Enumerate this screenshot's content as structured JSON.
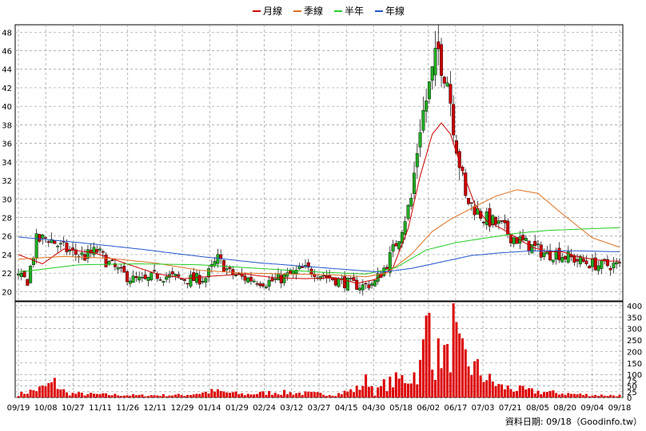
{
  "chart_data": {
    "type": "candlestick",
    "legend": [
      {
        "name": "月線",
        "color": "#cc0000"
      },
      {
        "name": "季線",
        "color": "#e07020"
      },
      {
        "name": "半年",
        "color": "#22cc22"
      },
      {
        "name": "年線",
        "color": "#2255cc"
      }
    ],
    "price_axis": {
      "ylim": [
        19,
        48.8
      ],
      "ticks": [
        20,
        22,
        24,
        26,
        28,
        30,
        32,
        34,
        36,
        38,
        40,
        42,
        44,
        46,
        48
      ]
    },
    "volume_axis": {
      "ylim": [
        0,
        410
      ],
      "ticks": [
        0,
        25,
        50,
        75,
        100,
        150,
        200,
        250,
        300,
        350,
        400
      ]
    },
    "x_labels": [
      "09/19",
      "10/08",
      "10/27",
      "11/11",
      "11/26",
      "12/11",
      "12/29",
      "01/14",
      "01/29",
      "02/24",
      "03/12",
      "03/27",
      "04/15",
      "04/30",
      "05/18",
      "06/02",
      "06/17",
      "07/03",
      "07/21",
      "08/05",
      "08/20",
      "09/04",
      "09/18"
    ],
    "source_text": "資料日期: 09/18（Goodinfo.tw）",
    "candle_up_color": "#22aa22",
    "candle_down_color": "#cc0000",
    "bar_color": "#dd0000",
    "grid": true,
    "anchors": {
      "close": [
        [
          0,
          21.5
        ],
        [
          3,
          21.2
        ],
        [
          6,
          25.5
        ],
        [
          10,
          25.8
        ],
        [
          14,
          24.8
        ],
        [
          18,
          24.2
        ],
        [
          22,
          23.8
        ],
        [
          26,
          24.4
        ],
        [
          30,
          23.0
        ],
        [
          34,
          22.0
        ],
        [
          38,
          21.3
        ],
        [
          42,
          21.1
        ],
        [
          46,
          21.8
        ],
        [
          50,
          21.6
        ],
        [
          54,
          21.4
        ],
        [
          58,
          21.3
        ],
        [
          62,
          21.5
        ],
        [
          66,
          23.5
        ],
        [
          70,
          22.0
        ],
        [
          74,
          21.5
        ],
        [
          78,
          21.3
        ],
        [
          82,
          21.0
        ],
        [
          86,
          21.3
        ],
        [
          90,
          21.8
        ],
        [
          94,
          22.4
        ],
        [
          98,
          22.2
        ],
        [
          102,
          21.6
        ],
        [
          106,
          21.2
        ],
        [
          110,
          20.8
        ],
        [
          114,
          20.6
        ],
        [
          118,
          21.0
        ],
        [
          122,
          23.0
        ],
        [
          126,
          26.0
        ],
        [
          130,
          30.0
        ],
        [
          133,
          38.0
        ],
        [
          136,
          42.0
        ],
        [
          139,
          46.0
        ],
        [
          142,
          43.0
        ],
        [
          145,
          36.0
        ],
        [
          148,
          30.0
        ],
        [
          151,
          29.0
        ],
        [
          154,
          28.0
        ],
        [
          157,
          27.5
        ],
        [
          160,
          27.0
        ],
        [
          163,
          26.0
        ],
        [
          166,
          25.5
        ],
        [
          169,
          25.0
        ],
        [
          172,
          24.5
        ],
        [
          175,
          24.0
        ],
        [
          178,
          24.2
        ],
        [
          181,
          23.8
        ],
        [
          184,
          23.5
        ],
        [
          187,
          23.2
        ],
        [
          190,
          23.0
        ],
        [
          193,
          22.8
        ],
        [
          196,
          22.9
        ],
        [
          199,
          22.8
        ]
      ],
      "ma20": [
        [
          0,
          24.0
        ],
        [
          8,
          23.0
        ],
        [
          15,
          24.6
        ],
        [
          25,
          24.2
        ],
        [
          35,
          23.1
        ],
        [
          45,
          22.0
        ],
        [
          55,
          21.4
        ],
        [
          65,
          21.7
        ],
        [
          75,
          21.9
        ],
        [
          85,
          21.5
        ],
        [
          95,
          21.4
        ],
        [
          105,
          21.5
        ],
        [
          112,
          20.9
        ],
        [
          118,
          21.3
        ],
        [
          124,
          22.6
        ],
        [
          129,
          26.8
        ],
        [
          133,
          32.5
        ],
        [
          137,
          37.0
        ],
        [
          140,
          38.2
        ],
        [
          143,
          37.0
        ],
        [
          147,
          33.0
        ],
        [
          151,
          29.5
        ],
        [
          155,
          27.6
        ],
        [
          160,
          26.8
        ],
        [
          165,
          25.8
        ],
        [
          170,
          24.8
        ],
        [
          175,
          24.3
        ],
        [
          180,
          24.3
        ],
        [
          185,
          23.8
        ],
        [
          190,
          23.5
        ],
        [
          195,
          23.3
        ],
        [
          199,
          23.3
        ]
      ],
      "ma60": [
        [
          0,
          23.5
        ],
        [
          15,
          23.8
        ],
        [
          30,
          23.6
        ],
        [
          45,
          23.1
        ],
        [
          60,
          22.3
        ],
        [
          75,
          22.0
        ],
        [
          90,
          21.9
        ],
        [
          105,
          21.8
        ],
        [
          115,
          21.6
        ],
        [
          122,
          22.0
        ],
        [
          130,
          24.0
        ],
        [
          137,
          26.5
        ],
        [
          143,
          27.8
        ],
        [
          150,
          29.0
        ],
        [
          158,
          30.3
        ],
        [
          165,
          31.0
        ],
        [
          172,
          30.6
        ],
        [
          180,
          28.4
        ],
        [
          190,
          25.8
        ],
        [
          199,
          24.8
        ]
      ],
      "ma120": [
        [
          0,
          22.1
        ],
        [
          20,
          22.9
        ],
        [
          40,
          23.0
        ],
        [
          60,
          22.9
        ],
        [
          80,
          22.5
        ],
        [
          100,
          22.1
        ],
        [
          115,
          21.9
        ],
        [
          125,
          22.6
        ],
        [
          135,
          24.5
        ],
        [
          145,
          25.3
        ],
        [
          155,
          25.8
        ],
        [
          165,
          26.3
        ],
        [
          175,
          26.6
        ],
        [
          190,
          26.8
        ],
        [
          199,
          26.9
        ]
      ],
      "ma240": [
        [
          0,
          25.9
        ],
        [
          20,
          25.3
        ],
        [
          40,
          24.6
        ],
        [
          60,
          23.8
        ],
        [
          80,
          23.1
        ],
        [
          100,
          22.6
        ],
        [
          120,
          22.1
        ],
        [
          130,
          22.5
        ],
        [
          140,
          23.2
        ],
        [
          150,
          23.9
        ],
        [
          160,
          24.2
        ],
        [
          170,
          24.4
        ],
        [
          185,
          24.4
        ],
        [
          199,
          24.3
        ]
      ],
      "volume": [
        [
          0,
          15
        ],
        [
          8,
          45
        ],
        [
          12,
          70
        ],
        [
          16,
          20
        ],
        [
          25,
          15
        ],
        [
          40,
          10
        ],
        [
          55,
          12
        ],
        [
          65,
          30
        ],
        [
          75,
          15
        ],
        [
          85,
          25
        ],
        [
          95,
          20
        ],
        [
          105,
          15
        ],
        [
          112,
          40
        ],
        [
          116,
          90
        ],
        [
          118,
          20
        ],
        [
          121,
          60
        ],
        [
          124,
          75
        ],
        [
          127,
          90
        ],
        [
          130,
          100
        ],
        [
          133,
          140
        ],
        [
          136,
          410
        ],
        [
          138,
          150
        ],
        [
          140,
          240
        ],
        [
          142,
          180
        ],
        [
          144,
          320
        ],
        [
          146,
          200
        ],
        [
          148,
          180
        ],
        [
          150,
          150
        ],
        [
          153,
          120
        ],
        [
          156,
          80
        ],
        [
          160,
          50
        ],
        [
          165,
          40
        ],
        [
          170,
          30
        ],
        [
          175,
          25
        ],
        [
          180,
          20
        ],
        [
          185,
          15
        ],
        [
          190,
          12
        ],
        [
          199,
          10
        ]
      ]
    }
  }
}
